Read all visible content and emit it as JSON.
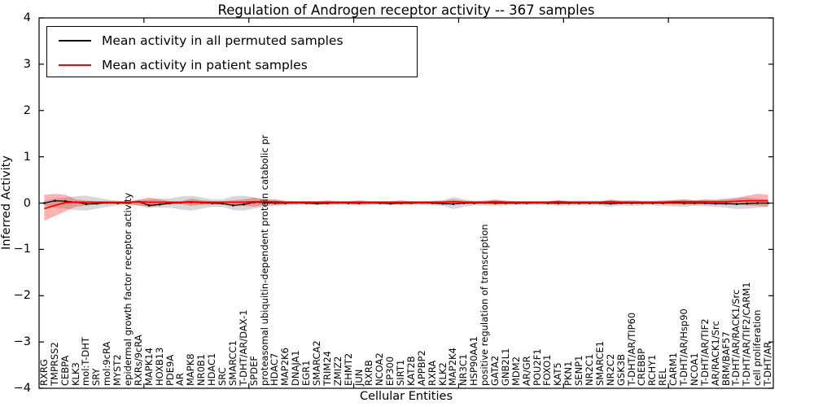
{
  "figure": {
    "title": "Regulation of Androgen receptor activity -- 367 samples",
    "xlabel": "Cellular Entities",
    "ylabel": "Inferred Activity"
  },
  "legend": {
    "items": [
      {
        "label": "Mean activity in all permuted samples",
        "color": "#000000"
      },
      {
        "label": "Mean activity in patient samples",
        "color": "#ff0000"
      }
    ]
  },
  "chart_data": {
    "type": "line",
    "title": "Regulation of Androgen receptor activity -- 367 samples",
    "xlabel": "Cellular Entities",
    "ylabel": "Inferred Activity",
    "ylim": [
      -4,
      4
    ],
    "grid": false,
    "legend_position": "upper left",
    "yticks": [
      {
        "v": 4,
        "label": "4"
      },
      {
        "v": 3,
        "label": "3"
      },
      {
        "v": 2,
        "label": "2"
      },
      {
        "v": 1,
        "label": "1"
      },
      {
        "v": 0,
        "label": "0"
      },
      {
        "v": -1,
        "label": "−1"
      },
      {
        "v": -2,
        "label": "−2"
      },
      {
        "v": -3,
        "label": "−3"
      },
      {
        "v": -4,
        "label": "−4"
      }
    ],
    "xtick_positions": [
      10,
      20,
      30,
      40,
      50,
      60
    ],
    "categories": [
      "RXRG",
      "TMPRSS2",
      "CEBPA",
      "KLK3",
      "mol:T-DHT",
      "SRY",
      "mol:9cRA",
      "MYST2",
      "epidermal growth factor receptor activity",
      "RXRs/9cRA",
      "MAPK14",
      "HOXB13",
      "PDE9A",
      "AR",
      "MAPK8",
      "NR0B1",
      "HDAC1",
      "SRC",
      "SMARCC1",
      "T-DHT/AR/DAX-1",
      "SPDEF",
      "proteasomal ubiquitin-dependent protein catabolic pr",
      "HDAC7",
      "MAP2K6",
      "DNAJA1",
      "EGR1",
      "SMARCA2",
      "TRIM24",
      "ZMIZ2",
      "EHMT2",
      "JUN",
      "RXRB",
      "NCOA2",
      "EP300",
      "SIRT1",
      "KAT2B",
      "APPBP2",
      "RXRA",
      "KLK2",
      "MAP2K4",
      "NR3C1",
      "HSP90AA1",
      "positive regulation of transcription",
      "GATA2",
      "GNB2L1",
      "MDM2",
      "AR/GR",
      "POU2F1",
      "FOXO1",
      "KAT5",
      "PKN1",
      "SENP1",
      "NR2C1",
      "SMARCE1",
      "NR2C2",
      "GSK3B",
      "T-DHT/AR/TIP60",
      "CREBBP",
      "RCHY1",
      "REL",
      "CARM1",
      "T-DHT/AR/Hsp90",
      "NCOA1",
      "T-DHT/AR/TIF2",
      "AR/RACK1/Src",
      "BRM/BAF57",
      "T-DHT/AR/RACK1/Src",
      "T-DHT/AR/TIF2/CARM1",
      "cell proliferation",
      "T-DHT/AR"
    ],
    "series": [
      {
        "name": "Mean activity in all permuted samples",
        "id": "permuted-mean",
        "color": "#000000",
        "width": 1.3,
        "markers": true,
        "values": [
          0.0,
          0.05,
          0.04,
          0.02,
          -0.02,
          -0.01,
          0.01,
          0.0,
          0.01,
          0.03,
          -0.05,
          -0.03,
          0.0,
          0.01,
          0.02,
          0.01,
          0.0,
          -0.01,
          -0.05,
          -0.03,
          0.02,
          0.01,
          0.0,
          0.0,
          0.01,
          0.0,
          -0.01,
          0.0,
          0.01,
          0.0,
          0.0,
          0.01,
          0.0,
          -0.01,
          0.0,
          0.0,
          0.01,
          0.0,
          -0.01,
          -0.02,
          0.0,
          0.0,
          0.01,
          0.0,
          0.0,
          0.0,
          0.0,
          0.01,
          0.0,
          0.0,
          0.0,
          0.0,
          0.0,
          0.0,
          -0.01,
          0.0,
          0.0,
          0.0,
          0.0,
          0.0,
          0.01,
          0.0,
          0.0,
          0.0,
          -0.01,
          -0.01,
          -0.02,
          -0.01,
          0.0,
          0.0
        ]
      },
      {
        "name": "Mean activity in patient samples",
        "id": "patient-mean",
        "color": "#ff0000",
        "width": 1.8,
        "markers": false,
        "values": [
          -0.12,
          -0.05,
          0.01,
          0.02,
          0.02,
          0.02,
          0.02,
          0.02,
          0.02,
          0.03,
          0.02,
          0.02,
          0.02,
          0.02,
          0.03,
          0.02,
          0.02,
          0.02,
          0.02,
          0.02,
          0.03,
          0.03,
          0.03,
          0.02,
          0.02,
          0.02,
          0.02,
          0.02,
          0.02,
          0.02,
          0.02,
          0.02,
          0.02,
          0.02,
          0.02,
          0.02,
          0.02,
          0.02,
          0.02,
          0.03,
          0.02,
          0.02,
          0.02,
          0.03,
          0.02,
          0.02,
          0.02,
          0.02,
          0.02,
          0.03,
          0.02,
          0.02,
          0.02,
          0.02,
          0.03,
          0.02,
          0.02,
          0.02,
          0.02,
          0.02,
          0.03,
          0.03,
          0.03,
          0.03,
          0.03,
          0.03,
          0.04,
          0.05,
          0.05,
          0.05
        ]
      }
    ],
    "bands": [
      {
        "id": "permuted-range",
        "color": "#8c8c8c",
        "opacity": 0.35,
        "upper": [
          0.05,
          0.1,
          0.12,
          0.15,
          0.16,
          0.12,
          0.08,
          0.05,
          0.04,
          0.06,
          0.08,
          0.1,
          0.1,
          0.14,
          0.16,
          0.12,
          0.08,
          0.08,
          0.15,
          0.16,
          0.12,
          0.08,
          0.06,
          0.05,
          0.04,
          0.04,
          0.04,
          0.04,
          0.04,
          0.04,
          0.05,
          0.04,
          0.04,
          0.04,
          0.04,
          0.04,
          0.04,
          0.05,
          0.06,
          0.13,
          0.08,
          0.05,
          0.05,
          0.06,
          0.05,
          0.04,
          0.04,
          0.04,
          0.04,
          0.06,
          0.05,
          0.05,
          0.05,
          0.05,
          0.08,
          0.05,
          0.06,
          0.05,
          0.05,
          0.06,
          0.07,
          0.08,
          0.06,
          0.07,
          0.08,
          0.1,
          0.13,
          0.12,
          0.1,
          0.08
        ],
        "lower": [
          -0.05,
          -0.1,
          -0.12,
          -0.15,
          -0.16,
          -0.12,
          -0.08,
          -0.05,
          -0.04,
          -0.06,
          -0.08,
          -0.1,
          -0.1,
          -0.14,
          -0.16,
          -0.12,
          -0.08,
          -0.08,
          -0.15,
          -0.16,
          -0.12,
          -0.08,
          -0.06,
          -0.05,
          -0.04,
          -0.04,
          -0.04,
          -0.04,
          -0.04,
          -0.04,
          -0.05,
          -0.04,
          -0.04,
          -0.04,
          -0.04,
          -0.04,
          -0.04,
          -0.05,
          -0.06,
          -0.13,
          -0.08,
          -0.05,
          -0.05,
          -0.06,
          -0.05,
          -0.04,
          -0.04,
          -0.04,
          -0.04,
          -0.06,
          -0.05,
          -0.05,
          -0.05,
          -0.05,
          -0.08,
          -0.05,
          -0.06,
          -0.05,
          -0.05,
          -0.06,
          -0.07,
          -0.08,
          -0.06,
          -0.07,
          -0.08,
          -0.1,
          -0.13,
          -0.12,
          -0.1,
          -0.08
        ]
      },
      {
        "id": "patient-range",
        "color": "#ff0000",
        "opacity": 0.3,
        "upper": [
          0.18,
          0.2,
          0.18,
          0.08,
          0.05,
          0.04,
          0.03,
          0.03,
          0.03,
          0.08,
          0.12,
          0.08,
          0.04,
          0.03,
          0.1,
          0.06,
          0.04,
          0.04,
          0.06,
          0.08,
          0.12,
          0.08,
          0.09,
          0.04,
          0.04,
          0.04,
          0.04,
          0.06,
          0.04,
          0.04,
          0.06,
          0.04,
          0.04,
          0.04,
          0.06,
          0.04,
          0.04,
          0.04,
          0.05,
          0.08,
          0.05,
          0.04,
          0.05,
          0.08,
          0.05,
          0.04,
          0.04,
          0.04,
          0.04,
          0.06,
          0.04,
          0.04,
          0.04,
          0.04,
          0.07,
          0.05,
          0.05,
          0.04,
          0.04,
          0.05,
          0.06,
          0.08,
          0.06,
          0.08,
          0.06,
          0.08,
          0.1,
          0.16,
          0.2,
          0.18
        ],
        "lower": [
          -0.38,
          -0.28,
          -0.18,
          -0.08,
          -0.05,
          -0.03,
          -0.02,
          -0.02,
          -0.02,
          -0.05,
          -0.1,
          -0.05,
          -0.03,
          -0.02,
          -0.06,
          -0.04,
          -0.03,
          -0.03,
          -0.04,
          -0.05,
          -0.08,
          -0.04,
          -0.04,
          -0.03,
          -0.02,
          -0.02,
          -0.02,
          -0.03,
          -0.02,
          -0.02,
          -0.03,
          -0.02,
          -0.02,
          -0.02,
          -0.03,
          -0.02,
          -0.02,
          -0.02,
          -0.03,
          -0.03,
          -0.02,
          -0.02,
          -0.02,
          -0.03,
          -0.02,
          -0.02,
          -0.02,
          -0.02,
          -0.02,
          -0.03,
          -0.02,
          -0.02,
          -0.02,
          -0.02,
          -0.03,
          -0.02,
          -0.02,
          -0.02,
          -0.02,
          -0.02,
          -0.03,
          -0.04,
          -0.03,
          -0.03,
          -0.03,
          -0.04,
          -0.04,
          -0.05,
          -0.06,
          -0.08
        ]
      }
    ]
  }
}
